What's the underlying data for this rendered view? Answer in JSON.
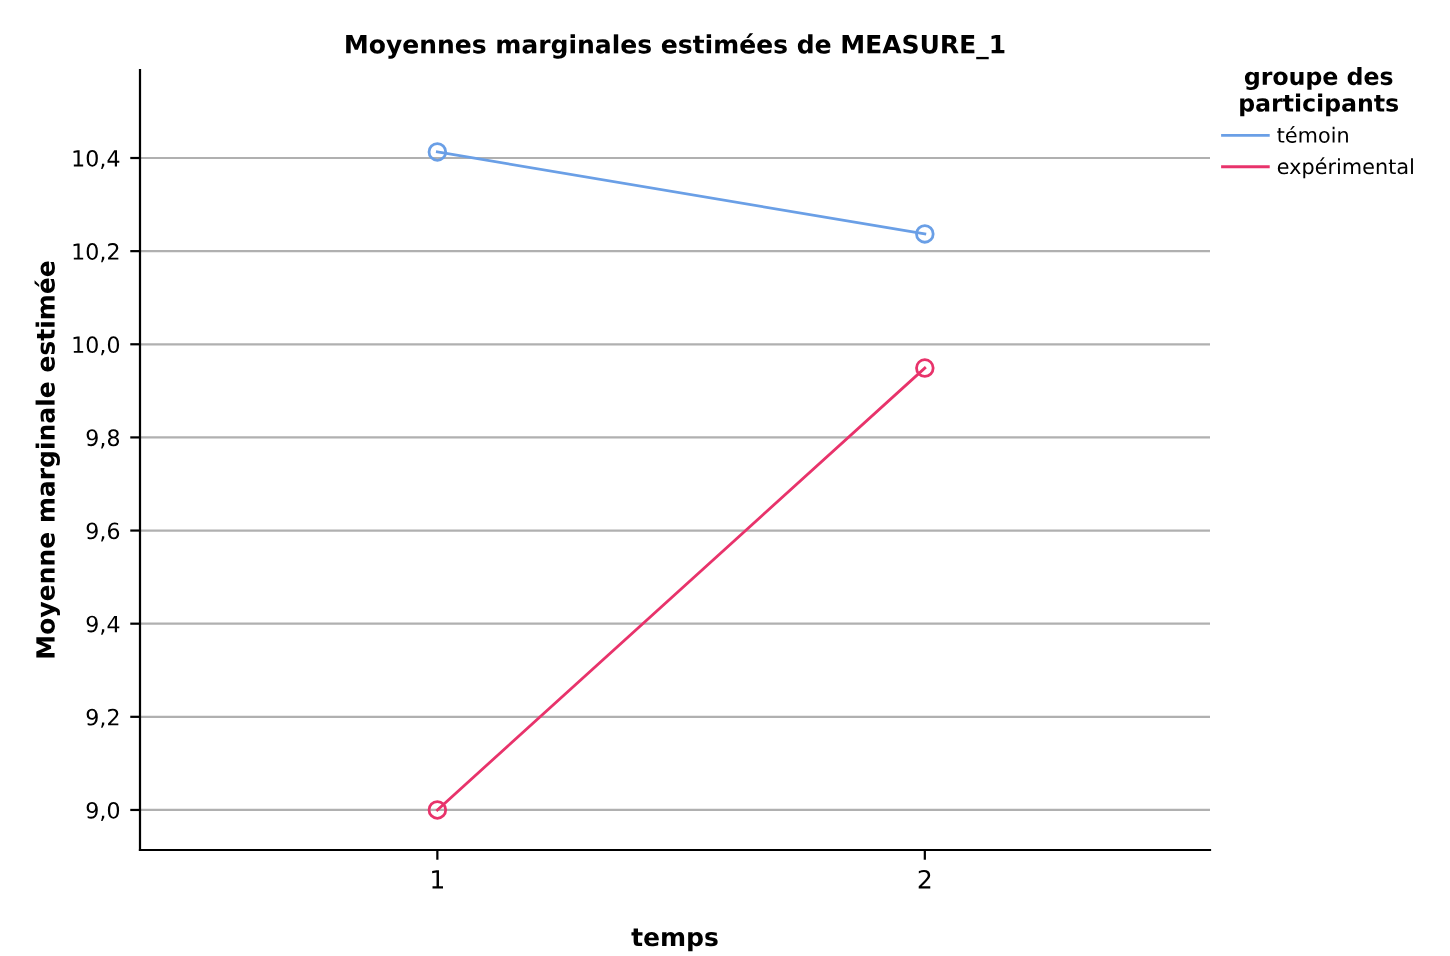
{
  "chart_data": {
    "type": "line",
    "title": "Moyennes marginales estimées de MEASURE_1",
    "xlabel": "temps",
    "ylabel": "Moyenne marginale estimée",
    "legend_title": "groupe des participants",
    "categories": [
      "1",
      "2"
    ],
    "series": [
      {
        "name": "témoin",
        "color": "#6a9fe6",
        "values": [
          10.413,
          10.237
        ]
      },
      {
        "name": "expérimental",
        "color": "#e8336b",
        "values": [
          9.0,
          9.949
        ]
      }
    ],
    "ylim": [
      8.914,
      10.589
    ],
    "yticks": [
      {
        "value": 9.0,
        "label": "9,0"
      },
      {
        "value": 9.2,
        "label": "9,2"
      },
      {
        "value": 9.4,
        "label": "9,4"
      },
      {
        "value": 9.6,
        "label": "9,6"
      },
      {
        "value": 9.8,
        "label": "9,8"
      },
      {
        "value": 10.0,
        "label": "10,0"
      },
      {
        "value": 10.2,
        "label": "10,2"
      },
      {
        "value": 10.4,
        "label": "10,4"
      }
    ],
    "grid": "y",
    "legend": "top right",
    "marker": "circle",
    "line_style": "solid"
  }
}
